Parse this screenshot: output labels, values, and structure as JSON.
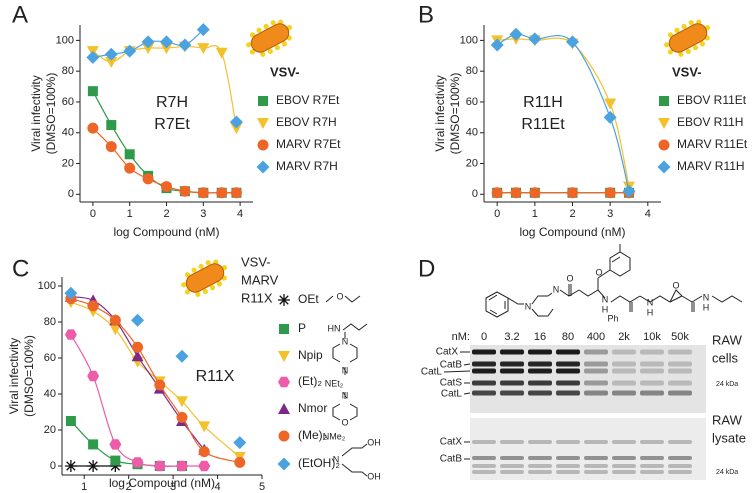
{
  "chart_data": [
    {
      "type": "scatter",
      "panel_label": "A",
      "ylabel": [
        "Viral infectivity",
        "(DMSO=100%)"
      ],
      "xlabel": "log Compound (nM)",
      "annotation": [
        "R7H",
        "R7Et"
      ],
      "legend_title": [
        "VSV-"
      ],
      "x": [
        0,
        0.5,
        1,
        1.5,
        2,
        2.5,
        3,
        3.5,
        3.9
      ],
      "series": [
        {
          "name": "EBOV R7Et",
          "color": "#2e9a4a",
          "marker": "square",
          "values": [
            67,
            45,
            26,
            12,
            4,
            2,
            1,
            1,
            1
          ]
        },
        {
          "name": "EBOV R7H",
          "color": "#f3c12c",
          "marker": "triangle-down",
          "values": [
            93,
            86,
            93,
            95,
            95,
            96,
            95,
            92,
            43
          ]
        },
        {
          "name": "MARV R7Et",
          "color": "#ee6528",
          "marker": "circle",
          "values": [
            43,
            31,
            17,
            10,
            5,
            2,
            1,
            1,
            1
          ]
        },
        {
          "name": "MARV R7H",
          "color": "#4aa3e0",
          "marker": "diamond",
          "values": [
            89,
            91,
            93,
            99,
            99,
            97,
            107,
            null,
            47
          ]
        }
      ],
      "xlim": [
        -0.35,
        4.35
      ],
      "ylim": [
        -5,
        110
      ],
      "xticks": [
        0,
        1,
        2,
        3,
        4
      ],
      "yticks": [
        0,
        20,
        40,
        60,
        80,
        100
      ],
      "fit_curves": true
    },
    {
      "type": "scatter",
      "panel_label": "B",
      "ylabel": [
        "Viral infectivity",
        "(DMSO=100%)"
      ],
      "xlabel": "log Compound (nM)",
      "annotation": [
        "R11H",
        "R11Et"
      ],
      "legend_title": [
        "VSV-"
      ],
      "x": [
        0,
        0.5,
        1,
        2,
        3,
        3.5
      ],
      "series": [
        {
          "name": "EBOV R11Et",
          "color": "#2e9a4a",
          "marker": "square",
          "values": [
            1,
            1,
            1,
            1,
            1,
            1
          ]
        },
        {
          "name": "EBOV R11H",
          "color": "#f3c12c",
          "marker": "triangle-down",
          "values": [
            100,
            101,
            100,
            98,
            59,
            5
          ]
        },
        {
          "name": "MARV R11Et",
          "color": "#ee6528",
          "marker": "circle",
          "values": [
            1,
            1,
            1,
            1,
            1,
            1
          ]
        },
        {
          "name": "MARV R11H",
          "color": "#4aa3e0",
          "marker": "diamond",
          "values": [
            97,
            104,
            101,
            99,
            50,
            2
          ]
        }
      ],
      "xlim": [
        -0.35,
        4.35
      ],
      "ylim": [
        -5,
        110
      ],
      "xticks": [
        0,
        1,
        2,
        3,
        4
      ],
      "yticks": [
        0,
        20,
        40,
        60,
        80,
        100
      ],
      "fit_curves": true
    },
    {
      "type": "scatter",
      "panel_label": "C",
      "ylabel": [
        "Viral infectivity",
        "(DMSO=100%)"
      ],
      "xlabel": "log Compound (nM)",
      "annotation": [
        "R11X"
      ],
      "legend_title": [
        "VSV-",
        "MARV",
        "R11X"
      ],
      "x": [
        0.7,
        1.2,
        1.7,
        2.2,
        2.7,
        3.2,
        3.7,
        4.5
      ],
      "series": [
        {
          "name": "OEt",
          "color": "#111111",
          "marker": "star",
          "values": [
            0,
            0,
            0,
            null,
            null,
            null,
            null,
            null
          ]
        },
        {
          "name": "P",
          "color": "#2e9a4a",
          "marker": "square",
          "values": [
            25,
            12,
            3,
            1,
            0,
            0,
            null,
            null
          ]
        },
        {
          "name": "Npip",
          "color": "#f3c12c",
          "marker": "triangle-down",
          "values": [
            91,
            86,
            76,
            58,
            47,
            36,
            22,
            5
          ]
        },
        {
          "name": "(Et)₂",
          "color": "#ec5ca8",
          "marker": "hexagon",
          "values": [
            73,
            50,
            12,
            2,
            0,
            0,
            0,
            null
          ]
        },
        {
          "name": "Nmor",
          "color": "#7b2a8a",
          "marker": "triangle-up",
          "values": [
            94,
            92,
            81,
            61,
            43,
            25,
            9,
            null
          ]
        },
        {
          "name": "(Me)₂",
          "color": "#ee6528",
          "marker": "circle",
          "values": [
            93,
            89,
            81,
            66,
            45,
            27,
            8,
            2
          ]
        },
        {
          "name": "(EtOH)₂",
          "color": "#4aa3e0",
          "marker": "diamond",
          "values": [
            96,
            null,
            null,
            81,
            null,
            61,
            null,
            13
          ]
        }
      ],
      "legend_structures": [
        "O",
        "HN",
        "N",
        "N",
        "NEt₂",
        "N",
        "O",
        "NMe₂",
        "N",
        "OH",
        "OH"
      ],
      "xlim": [
        0.5,
        5
      ],
      "ylim": [
        -5,
        105
      ],
      "xticks": [
        1,
        2,
        3,
        4,
        5
      ],
      "yticks": [
        0,
        20,
        40,
        60,
        80,
        100
      ],
      "fit_curves": true
    }
  ],
  "blot": {
    "panel_label": "D",
    "nm_label": "nM:",
    "concentrations": [
      "0",
      "3.2",
      "16",
      "80",
      "400",
      "2k",
      "10k",
      "50k"
    ],
    "cells_label": [
      "RAW",
      "cells"
    ],
    "lysate_label": [
      "RAW",
      "lysate"
    ],
    "cells_bands": [
      "CatX",
      "CatB",
      "CatL",
      "CatS",
      "CatL"
    ],
    "lysate_bands": [
      "CatX",
      "CatB"
    ],
    "kda": "24 kDa",
    "structure_labels": [
      "N",
      "N",
      "O",
      "N",
      "H",
      "Ph",
      "O",
      "N",
      "H",
      "O",
      "N",
      "H"
    ]
  }
}
